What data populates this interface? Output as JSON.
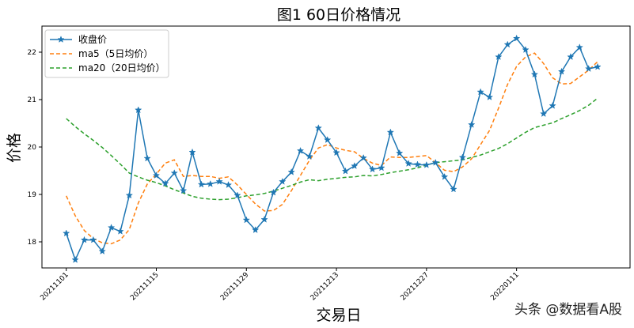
{
  "chart_data": {
    "type": "line",
    "title": "图1  60日价格情况",
    "xlabel": "交易日",
    "ylabel": "价格",
    "x_tick_labels": [
      "20211101",
      "20211115",
      "20211129",
      "20211213",
      "20211227",
      "20220111"
    ],
    "x_tick_positions": [
      0,
      10,
      20,
      30,
      40,
      50
    ],
    "xlim": [
      -2.7,
      62.6
    ],
    "ylim": [
      17.45,
      22.55
    ],
    "y_ticks": [
      18,
      19,
      20,
      21,
      22
    ],
    "grid": false,
    "legend_position": "top-left",
    "series": [
      {
        "name": "收盘价",
        "style": "solid-star",
        "color": "#1f77b4",
        "values": [
          18.18,
          17.62,
          18.04,
          18.04,
          17.8,
          18.3,
          18.22,
          18.98,
          20.78,
          19.76,
          19.4,
          19.23,
          19.45,
          19.08,
          19.89,
          19.21,
          19.22,
          19.27,
          19.2,
          18.98,
          18.46,
          18.25,
          18.47,
          19.04,
          19.27,
          19.47,
          19.92,
          19.8,
          20.4,
          20.15,
          19.88,
          19.49,
          19.6,
          19.77,
          19.53,
          19.56,
          20.31,
          19.87,
          19.65,
          19.63,
          19.62,
          19.67,
          19.37,
          19.11,
          19.78,
          20.47,
          21.16,
          21.05,
          21.9,
          22.16,
          22.29,
          22.05,
          21.53,
          20.7,
          20.87,
          21.59,
          21.9,
          22.1,
          21.65,
          21.69
        ]
      },
      {
        "name": "ma5（5日均价）",
        "style": "dashed",
        "color": "#ff7f0e",
        "values": [
          18.97,
          18.55,
          18.24,
          18.07,
          17.98,
          17.96,
          18.04,
          18.26,
          18.82,
          19.22,
          19.43,
          19.66,
          19.73,
          19.38,
          19.4,
          19.38,
          19.38,
          19.34,
          19.37,
          19.2,
          19.0,
          18.8,
          18.65,
          18.66,
          18.79,
          19.08,
          19.4,
          19.72,
          19.98,
          20.05,
          19.98,
          19.93,
          19.9,
          19.76,
          19.66,
          19.61,
          19.79,
          19.78,
          19.78,
          19.8,
          19.82,
          19.67,
          19.51,
          19.48,
          19.58,
          19.75,
          20.05,
          20.35,
          20.82,
          21.32,
          21.7,
          21.9,
          21.98,
          21.76,
          21.46,
          21.33,
          21.34,
          21.48,
          21.62,
          21.8
        ]
      },
      {
        "name": "ma20（20日均价）",
        "style": "dashed",
        "color": "#2ca02c",
        "values": [
          20.6,
          20.43,
          20.28,
          20.14,
          19.99,
          19.82,
          19.64,
          19.45,
          19.37,
          19.3,
          19.25,
          19.18,
          19.1,
          19.03,
          18.96,
          18.92,
          18.9,
          18.89,
          18.9,
          18.93,
          18.97,
          18.99,
          19.02,
          19.07,
          19.13,
          19.19,
          19.26,
          19.31,
          19.29,
          19.32,
          19.34,
          19.36,
          19.37,
          19.4,
          19.39,
          19.42,
          19.46,
          19.49,
          19.52,
          19.56,
          19.62,
          19.67,
          19.69,
          19.71,
          19.73,
          19.78,
          19.83,
          19.9,
          19.97,
          20.07,
          20.19,
          20.31,
          20.41,
          20.46,
          20.51,
          20.6,
          20.68,
          20.77,
          20.88,
          21.03
        ]
      }
    ]
  },
  "watermark": "头条 @数据看A股"
}
